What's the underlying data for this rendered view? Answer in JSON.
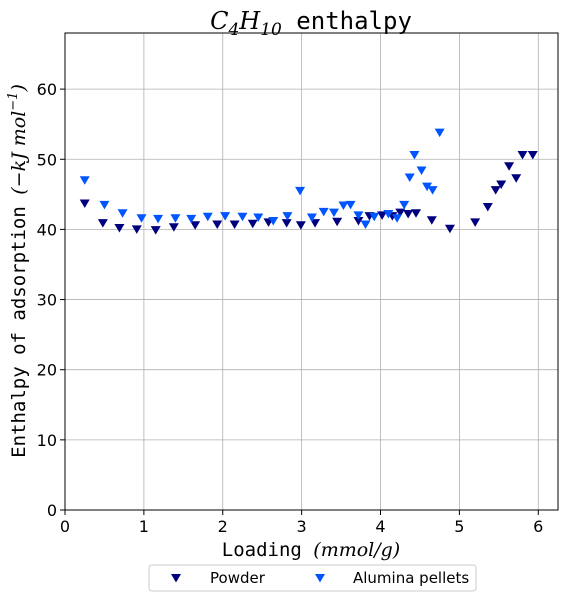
{
  "chart_data": {
    "type": "scatter",
    "title": "C4H10 enthalpy",
    "title_parts": {
      "prefix": "C",
      "sub1": "4",
      "mid": "H",
      "sub2": "10",
      "suffix": " enthalpy"
    },
    "xlabel": "Loading (mmol/g)",
    "xlabel_parts": {
      "text": "Loading ",
      "math": "(mmol/g)"
    },
    "ylabel": "Enthalpy of adsorption (−kJ mol⁻¹)",
    "ylabel_parts": {
      "text": "Enthalpy of adsorption ",
      "math": "(−kJ mol",
      "sup": "−1",
      "end": ")"
    },
    "xlim": [
      0,
      6.25
    ],
    "ylim": [
      0,
      68
    ],
    "xticks": [
      0,
      1,
      2,
      3,
      4,
      5,
      6
    ],
    "yticks": [
      0,
      10,
      20,
      30,
      40,
      50,
      60
    ],
    "grid": true,
    "legend_position": "bottom-center",
    "marker": "triangle-down",
    "series": [
      {
        "name": "Powder",
        "color": "#00007f",
        "points": [
          [
            0.25,
            43.7
          ],
          [
            0.48,
            40.9
          ],
          [
            0.69,
            40.2
          ],
          [
            0.91,
            40.0
          ],
          [
            1.15,
            39.9
          ],
          [
            1.38,
            40.3
          ],
          [
            1.65,
            40.6
          ],
          [
            1.93,
            40.7
          ],
          [
            2.15,
            40.7
          ],
          [
            2.38,
            40.8
          ],
          [
            2.58,
            41.0
          ],
          [
            2.81,
            40.9
          ],
          [
            2.99,
            40.6
          ],
          [
            3.17,
            40.9
          ],
          [
            3.45,
            41.1
          ],
          [
            3.72,
            41.2
          ],
          [
            3.86,
            41.9
          ],
          [
            4.02,
            42.0
          ],
          [
            4.15,
            41.9
          ],
          [
            4.25,
            42.4
          ],
          [
            4.35,
            42.2
          ],
          [
            4.45,
            42.3
          ],
          [
            4.65,
            41.3
          ],
          [
            4.88,
            40.1
          ],
          [
            5.2,
            41.0
          ],
          [
            5.36,
            43.2
          ],
          [
            5.46,
            45.6
          ],
          [
            5.53,
            46.4
          ],
          [
            5.63,
            49.0
          ],
          [
            5.72,
            47.3
          ],
          [
            5.8,
            50.6
          ],
          [
            5.93,
            50.6
          ]
        ]
      },
      {
        "name": "Alumina pellets",
        "color": "#0055ff",
        "points": [
          [
            0.25,
            47.0
          ],
          [
            0.5,
            43.5
          ],
          [
            0.73,
            42.3
          ],
          [
            0.97,
            41.6
          ],
          [
            1.18,
            41.5
          ],
          [
            1.4,
            41.6
          ],
          [
            1.6,
            41.5
          ],
          [
            1.81,
            41.8
          ],
          [
            2.03,
            41.9
          ],
          [
            2.25,
            41.8
          ],
          [
            2.45,
            41.7
          ],
          [
            2.64,
            41.2
          ],
          [
            2.82,
            41.9
          ],
          [
            2.98,
            45.5
          ],
          [
            3.13,
            41.7
          ],
          [
            3.28,
            42.5
          ],
          [
            3.41,
            42.4
          ],
          [
            3.53,
            43.4
          ],
          [
            3.62,
            43.5
          ],
          [
            3.72,
            42.0
          ],
          [
            3.81,
            40.7
          ],
          [
            3.92,
            41.8
          ],
          [
            4.1,
            42.2
          ],
          [
            4.21,
            41.6
          ],
          [
            4.3,
            43.5
          ],
          [
            4.37,
            47.4
          ],
          [
            4.43,
            50.6
          ],
          [
            4.52,
            48.4
          ],
          [
            4.59,
            46.1
          ],
          [
            4.66,
            45.6
          ],
          [
            4.75,
            53.8
          ]
        ]
      }
    ]
  }
}
